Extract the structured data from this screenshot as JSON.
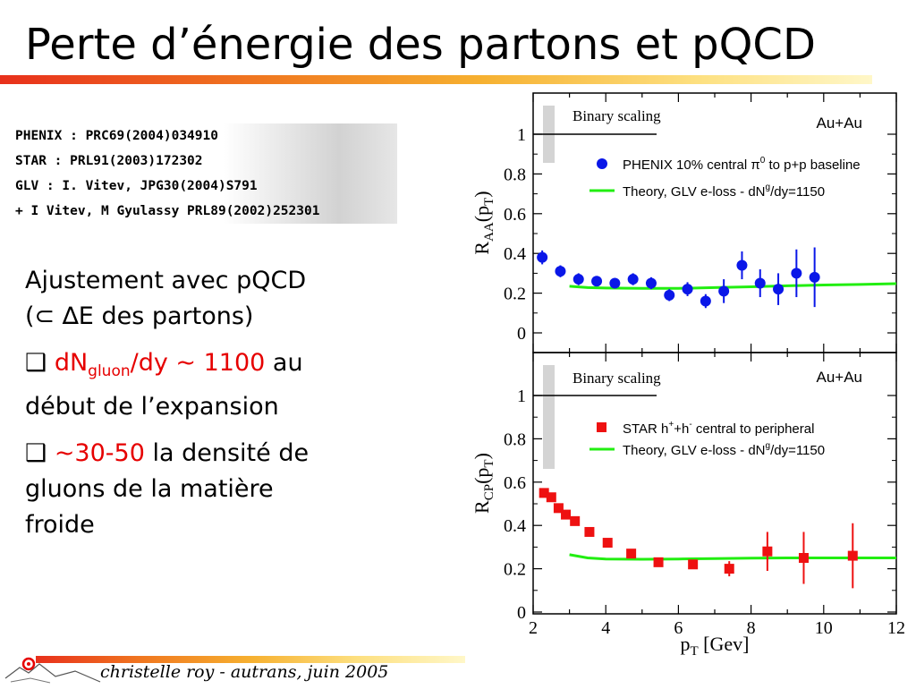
{
  "slide": {
    "title": "Perte d’énergie des partons et pQCD",
    "refs": [
      "PHENIX : PRC69(2004)034910",
      "STAR : PRL91(2003)172302",
      "GLV : I. Vitev, JPG30(2004)S791",
      "+ I Vitev, M Gyulassy PRL89(2002)252301"
    ],
    "b1_l1": "Ajustement avec pQCD",
    "b1_l2": "(⊂ ∆E des partons)",
    "b2_box": "❑",
    "b2_red1": "dN",
    "b2_red_sub": "gluon",
    "b2_red2": "/dy ~ 1100",
    "b2_rest1": " au",
    "b2_l2": "début de l’expansion",
    "b3_box": "❑",
    "b3_red": "~30-50",
    "b3_rest1": " la densité de",
    "b3_l2": "gluons de la matière",
    "b3_l3": "froide",
    "footer": "christelle roy - autrans, juin 2005",
    "colors": {
      "phenix": "#0a17e8",
      "star": "#ee1111",
      "theory": "#22ee11",
      "band": "#d4d4d4"
    }
  },
  "chart_data": [
    {
      "type": "scatter",
      "ylabel": "R",
      "ylabel_sub": "AA",
      "ylabel_paren": "(p",
      "ylabel_paren_sub": "T",
      "ylabel_close": ")",
      "ylim": [
        0,
        1.1
      ],
      "xlim": [
        2,
        12
      ],
      "yticks": [
        "0",
        "0.2",
        "0.4",
        "0.6",
        "0.8",
        "1"
      ],
      "yticks_values": [
        0,
        0.2,
        0.4,
        0.6,
        0.8,
        1
      ],
      "annotation_left": "Binary scaling",
      "annotation_right": "Au+Au",
      "legend": {
        "data_label": "PHENIX 10% central π",
        "data_sup": "0",
        "data_label_end": " to p+p baseline",
        "theory_label": "Theory, GLV e-loss - dN",
        "theory_sup": "g",
        "theory_end": "/dy=1150"
      },
      "series": [
        {
          "name": "PHENIX 10% central π⁰ to p+p baseline",
          "marker": "circle",
          "x": [
            2.25,
            2.75,
            3.25,
            3.75,
            4.25,
            4.75,
            5.25,
            5.75,
            6.25,
            6.75,
            7.25,
            7.75,
            8.25,
            8.75,
            9.25,
            9.75
          ],
          "y": [
            0.38,
            0.31,
            0.27,
            0.26,
            0.25,
            0.27,
            0.25,
            0.19,
            0.22,
            0.16,
            0.21,
            0.34,
            0.25,
            0.22,
            0.3,
            0.28
          ],
          "err": [
            0.035,
            0.03,
            0.03,
            0.025,
            0.025,
            0.03,
            0.03,
            0.03,
            0.035,
            0.035,
            0.06,
            0.07,
            0.07,
            0.08,
            0.12,
            0.15
          ]
        },
        {
          "name": "Theory, GLV e-loss - dNᵍ/dy=1150",
          "marker": "line",
          "x": [
            3.0,
            3.5,
            4.0,
            5.0,
            6.0,
            7.0,
            8.0,
            9.0,
            10.0,
            11.0,
            12.0
          ],
          "y": [
            0.235,
            0.228,
            0.226,
            0.224,
            0.224,
            0.228,
            0.232,
            0.237,
            0.241,
            0.244,
            0.248
          ]
        }
      ]
    },
    {
      "type": "scatter",
      "ylabel": "R",
      "ylabel_sub": "CP",
      "ylabel_paren": "(p",
      "ylabel_paren_sub": "T",
      "ylabel_close": ")",
      "xlabel": "p",
      "xlabel_sub": "T",
      "xlabel_unit": " [Gev]",
      "xlim": [
        2,
        12
      ],
      "ylim": [
        0,
        1.1
      ],
      "xticks": [
        "2",
        "4",
        "6",
        "8",
        "10",
        "12"
      ],
      "xticks_values": [
        2,
        4,
        6,
        8,
        10,
        12
      ],
      "yticks": [
        "0",
        "0.2",
        "0.4",
        "0.6",
        "0.8",
        "1"
      ],
      "yticks_values": [
        0,
        0.2,
        0.4,
        0.6,
        0.8,
        1
      ],
      "annotation_left": "Binary scaling",
      "annotation_right": "Au+Au",
      "legend": {
        "data_label": "STAR h",
        "data_sup1": "+",
        "data_mid": "+h",
        "data_sup2": "-",
        "data_end": " central to peripheral",
        "theory_label": "Theory, GLV e-loss - dN",
        "theory_sup": "g",
        "theory_end": "/dy=1150"
      },
      "series": [
        {
          "name": "STAR h⁺+h⁻ central to peripheral",
          "marker": "square",
          "x": [
            2.3,
            2.5,
            2.7,
            2.9,
            3.15,
            3.55,
            4.05,
            4.7,
            5.45,
            6.4,
            7.4,
            8.45,
            9.45,
            10.8
          ],
          "y": [
            0.55,
            0.53,
            0.48,
            0.45,
            0.42,
            0.37,
            0.32,
            0.27,
            0.23,
            0.22,
            0.2,
            0.28,
            0.25,
            0.26
          ],
          "err": [
            0.015,
            0.015,
            0.015,
            0.015,
            0.015,
            0.015,
            0.015,
            0.015,
            0.015,
            0.02,
            0.035,
            0.09,
            0.12,
            0.15
          ]
        },
        {
          "name": "Theory, GLV e-loss - dNᵍ/dy=1150",
          "marker": "line",
          "x": [
            3.0,
            3.5,
            4.0,
            5.0,
            6.0,
            7.0,
            8.0,
            9.0,
            10.0,
            11.0,
            12.0
          ],
          "y": [
            0.265,
            0.25,
            0.245,
            0.244,
            0.245,
            0.247,
            0.249,
            0.25,
            0.25,
            0.25,
            0.25
          ]
        }
      ]
    }
  ]
}
